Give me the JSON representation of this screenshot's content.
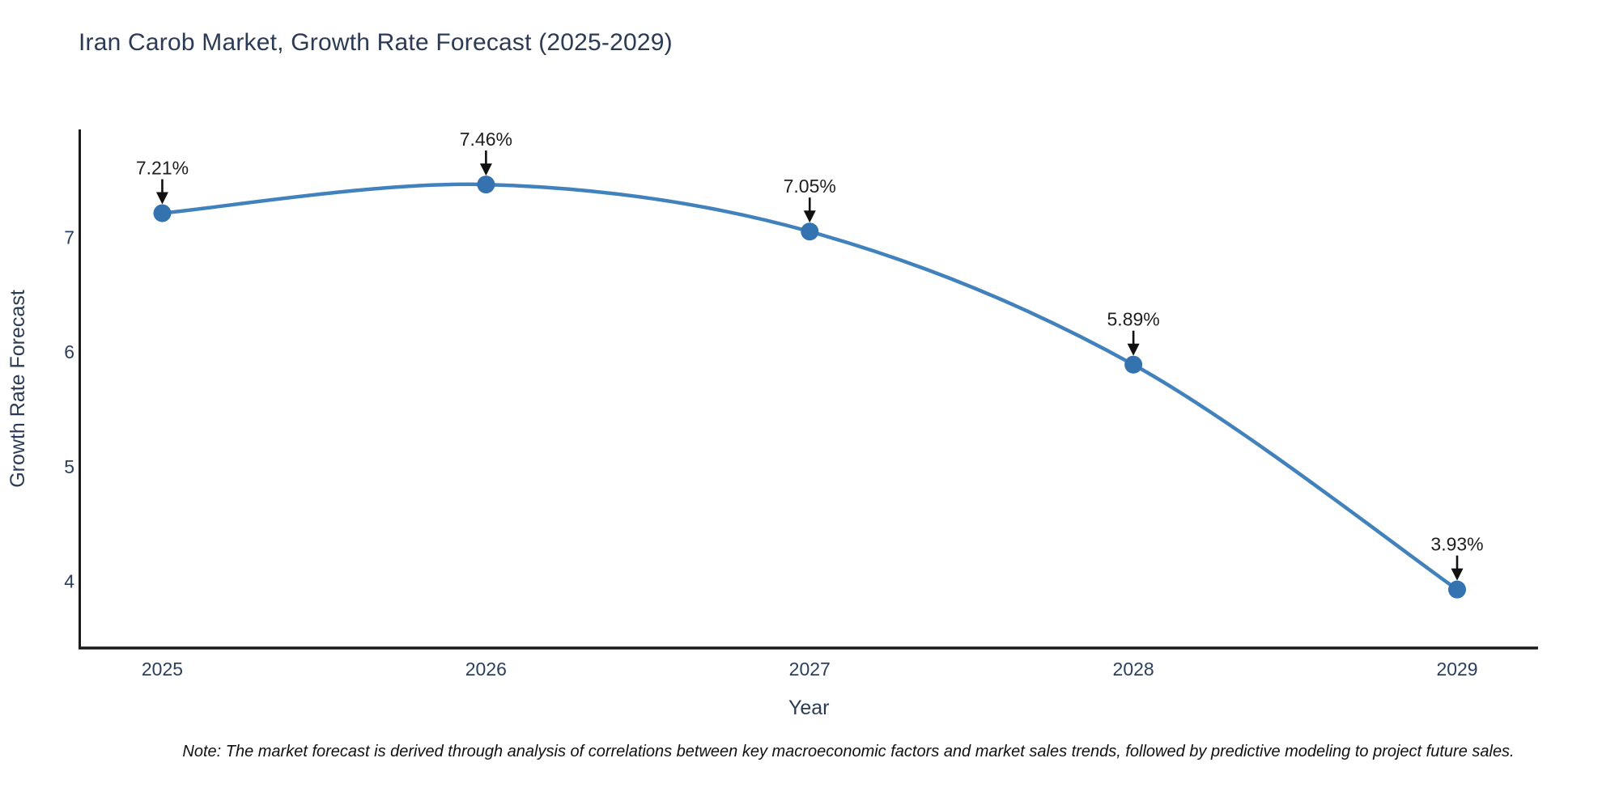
{
  "chart_data": {
    "type": "line",
    "title": "Iran Carob Market, Growth Rate Forecast (2025-2029)",
    "xlabel": "Year",
    "ylabel": "Growth Rate Forecast",
    "x": [
      2025,
      2026,
      2027,
      2028,
      2029
    ],
    "values": [
      7.21,
      7.46,
      7.05,
      5.89,
      3.93
    ],
    "point_labels": [
      "7.21%",
      "7.46%",
      "7.05%",
      "5.89%",
      "3.93%"
    ],
    "xticks": [
      "2025",
      "2026",
      "2027",
      "2028",
      "2029"
    ],
    "yticks": [
      4,
      5,
      6,
      7
    ],
    "xlim": [
      2024.745,
      2029.25
    ],
    "ylim": [
      3.42,
      7.94
    ],
    "grid": false,
    "legend": false,
    "line_shape": "spline",
    "colors": {
      "line": "#4182bd",
      "marker": "#3572b0",
      "axis": "#1a1a1a",
      "tick_label": "#2a3f5f",
      "axis_title": "#2b3a55",
      "annotation_text": "#1f1f1f",
      "annotation_arrow": "#111111"
    }
  },
  "note": "Note: The market forecast is derived through analysis of correlations between key macroeconomic factors and market sales trends, followed by predictive modeling to project future sales."
}
